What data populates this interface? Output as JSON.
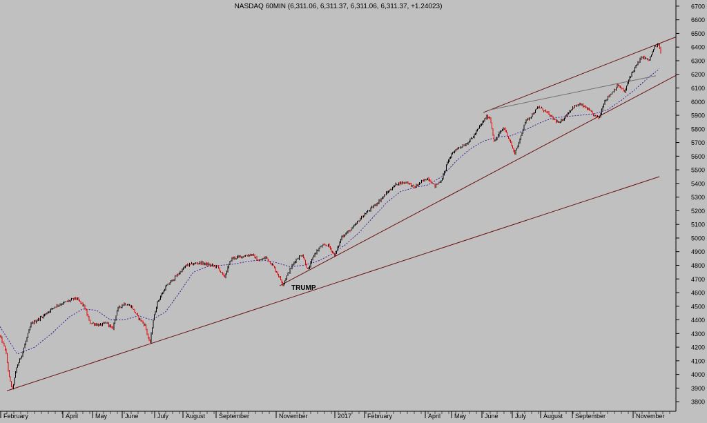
{
  "chart_data": {
    "type": "candlestick",
    "title": "NASDAQ 60MIN (6,311.06, 6,311.37, 6,311.06, 6,311.37, +1.24023)",
    "y_ticks": [
      3800,
      3900,
      4000,
      4100,
      4200,
      4300,
      4400,
      4500,
      4600,
      4700,
      4800,
      4900,
      5000,
      5100,
      5200,
      5300,
      5400,
      5500,
      5600,
      5700,
      5800,
      5900,
      6000,
      6100,
      6200,
      6300,
      6400,
      6500,
      6600,
      6700
    ],
    "ylim": [
      3730,
      6745
    ],
    "x_labels": [
      "February",
      "April",
      "May",
      "June",
      "July",
      "August",
      "September",
      "November",
      "2017",
      "February",
      "April",
      "May",
      "June",
      "July",
      "August",
      "September",
      "November"
    ],
    "price_anchors": [
      [
        0,
        4280
      ],
      [
        8,
        4180
      ],
      [
        14,
        3960
      ],
      [
        18,
        3890
      ],
      [
        24,
        4050
      ],
      [
        32,
        4150
      ],
      [
        45,
        4370
      ],
      [
        60,
        4420
      ],
      [
        80,
        4500
      ],
      [
        95,
        4530
      ],
      [
        110,
        4560
      ],
      [
        122,
        4500
      ],
      [
        130,
        4380
      ],
      [
        145,
        4360
      ],
      [
        155,
        4380
      ],
      [
        163,
        4330
      ],
      [
        170,
        4480
      ],
      [
        180,
        4520
      ],
      [
        190,
        4500
      ],
      [
        200,
        4420
      ],
      [
        210,
        4360
      ],
      [
        217,
        4220
      ],
      [
        222,
        4400
      ],
      [
        228,
        4530
      ],
      [
        240,
        4640
      ],
      [
        255,
        4720
      ],
      [
        270,
        4800
      ],
      [
        290,
        4820
      ],
      [
        305,
        4800
      ],
      [
        315,
        4790
      ],
      [
        325,
        4710
      ],
      [
        335,
        4850
      ],
      [
        355,
        4870
      ],
      [
        365,
        4880
      ],
      [
        375,
        4830
      ],
      [
        385,
        4860
      ],
      [
        395,
        4800
      ],
      [
        405,
        4710
      ],
      [
        410,
        4660
      ],
      [
        418,
        4750
      ],
      [
        428,
        4840
      ],
      [
        438,
        4880
      ],
      [
        446,
        4760
      ],
      [
        455,
        4880
      ],
      [
        465,
        4940
      ],
      [
        475,
        4950
      ],
      [
        485,
        4870
      ],
      [
        495,
        5010
      ],
      [
        510,
        5070
      ],
      [
        525,
        5160
      ],
      [
        545,
        5250
      ],
      [
        560,
        5330
      ],
      [
        575,
        5400
      ],
      [
        590,
        5410
      ],
      [
        600,
        5370
      ],
      [
        610,
        5410
      ],
      [
        620,
        5440
      ],
      [
        630,
        5380
      ],
      [
        640,
        5430
      ],
      [
        650,
        5580
      ],
      [
        660,
        5650
      ],
      [
        675,
        5690
      ],
      [
        685,
        5740
      ],
      [
        695,
        5820
      ],
      [
        705,
        5890
      ],
      [
        710,
        5880
      ],
      [
        716,
        5700
      ],
      [
        722,
        5760
      ],
      [
        730,
        5810
      ],
      [
        738,
        5720
      ],
      [
        745,
        5620
      ],
      [
        752,
        5700
      ],
      [
        760,
        5850
      ],
      [
        770,
        5900
      ],
      [
        780,
        5960
      ],
      [
        790,
        5930
      ],
      [
        800,
        5880
      ],
      [
        810,
        5840
      ],
      [
        820,
        5900
      ],
      [
        830,
        5960
      ],
      [
        840,
        5980
      ],
      [
        850,
        5950
      ],
      [
        860,
        5900
      ],
      [
        868,
        5880
      ],
      [
        875,
        6000
      ],
      [
        885,
        6060
      ],
      [
        895,
        6120
      ],
      [
        905,
        6070
      ],
      [
        912,
        6180
      ],
      [
        920,
        6250
      ],
      [
        930,
        6330
      ],
      [
        940,
        6300
      ],
      [
        948,
        6400
      ],
      [
        955,
        6420
      ],
      [
        958,
        6311
      ]
    ],
    "moving_average": [
      [
        0,
        4350
      ],
      [
        25,
        4150
      ],
      [
        50,
        4200
      ],
      [
        75,
        4300
      ],
      [
        100,
        4420
      ],
      [
        120,
        4480
      ],
      [
        140,
        4470
      ],
      [
        160,
        4400
      ],
      [
        180,
        4400
      ],
      [
        200,
        4430
      ],
      [
        220,
        4400
      ],
      [
        240,
        4460
      ],
      [
        260,
        4600
      ],
      [
        280,
        4750
      ],
      [
        300,
        4790
      ],
      [
        320,
        4800
      ],
      [
        340,
        4810
      ],
      [
        360,
        4830
      ],
      [
        380,
        4840
      ],
      [
        400,
        4820
      ],
      [
        420,
        4790
      ],
      [
        440,
        4800
      ],
      [
        460,
        4830
      ],
      [
        480,
        4880
      ],
      [
        500,
        4950
      ],
      [
        520,
        5040
      ],
      [
        540,
        5150
      ],
      [
        560,
        5260
      ],
      [
        580,
        5340
      ],
      [
        600,
        5370
      ],
      [
        620,
        5390
      ],
      [
        640,
        5450
      ],
      [
        660,
        5560
      ],
      [
        680,
        5650
      ],
      [
        700,
        5710
      ],
      [
        720,
        5740
      ],
      [
        740,
        5750
      ],
      [
        760,
        5790
      ],
      [
        780,
        5840
      ],
      [
        800,
        5880
      ],
      [
        820,
        5890
      ],
      [
        840,
        5900
      ],
      [
        860,
        5910
      ],
      [
        880,
        5940
      ],
      [
        900,
        6010
      ],
      [
        920,
        6090
      ],
      [
        940,
        6180
      ],
      [
        955,
        6240
      ]
    ],
    "trendlines": [
      {
        "name": "long-term-support",
        "x1": 10,
        "y1": 3880,
        "x2": 955,
        "y2": 5450
      },
      {
        "name": "upper-channel",
        "x1": 700,
        "y1": 5920,
        "x2": 982,
        "y2": 6480
      },
      {
        "name": "lower-channel",
        "x1": 405,
        "y1": 4650,
        "x2": 982,
        "y2": 6200
      },
      {
        "name": "inner-line",
        "x1": 710,
        "y1": 5940,
        "x2": 950,
        "y2": 6190
      }
    ],
    "annotation": {
      "text": "TRUMP",
      "x": 422,
      "price": 4640
    },
    "colors": {
      "background": "#c0c0c0",
      "up": "#000000",
      "down": "#e00000",
      "moving_average": "#3a1f9a",
      "trendline": "#6b1010",
      "inner_line": "#707070"
    }
  }
}
